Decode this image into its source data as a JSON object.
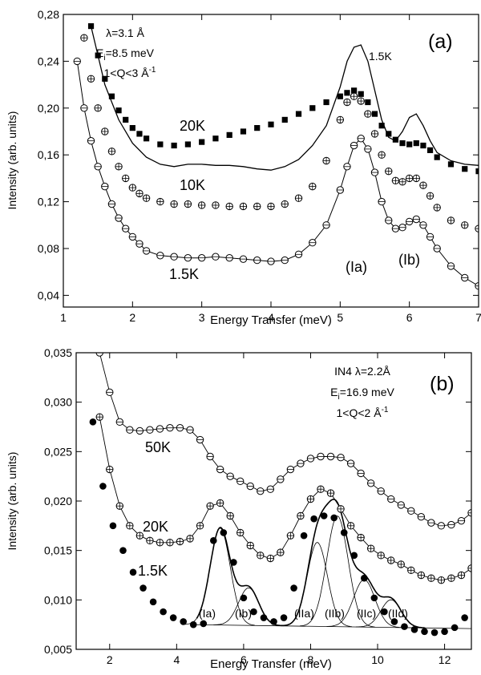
{
  "chart_data": [
    {
      "type": "scatter",
      "panel_label": "(a)",
      "xlabel": "Energy Transfer (meV)",
      "ylabel": "Intensity (arb. units)",
      "xlim": [
        1,
        7
      ],
      "ylim": [
        0.03,
        0.28
      ],
      "x_ticks": [
        1,
        2,
        3,
        4,
        5,
        6,
        7
      ],
      "x_tick_labels": [
        "1",
        "2",
        "3",
        "4",
        "5",
        "6",
        "7"
      ],
      "y_ticks": [
        0.04,
        0.08,
        0.12,
        0.16,
        0.2,
        0.24,
        0.28
      ],
      "y_tick_labels": [
        "0,04",
        "0,08",
        "0,12",
        "0,16",
        "0,20",
        "0,24",
        "0,28"
      ],
      "info_lines": [
        {
          "main": "λ=3.1 Å",
          "sub": "",
          "tail": "",
          "sup": ""
        },
        {
          "main": "E",
          "sub": "i",
          "tail": "=8.5 meV",
          "sup": ""
        },
        {
          "main": "1<Q<3 Å",
          "sub": "",
          "tail": "",
          "sup": "-1"
        }
      ],
      "labels": [
        "20K",
        "10K",
        "1.5K",
        "1.5K",
        "(Ia)",
        "(Ib)"
      ],
      "series": [
        {
          "name": "20K",
          "marker": "filled-square",
          "x": [
            1.4,
            1.5,
            1.6,
            1.7,
            1.8,
            1.9,
            2.0,
            2.1,
            2.2,
            2.4,
            2.6,
            2.8,
            3.0,
            3.2,
            3.4,
            3.6,
            3.8,
            4.0,
            4.2,
            4.4,
            4.6,
            4.8,
            5.0,
            5.1,
            5.2,
            5.3,
            5.4,
            5.5,
            5.6,
            5.7,
            5.8,
            5.9,
            6.0,
            6.1,
            6.2,
            6.3,
            6.4,
            6.6,
            6.8,
            7.0
          ],
          "y": [
            0.27,
            0.245,
            0.225,
            0.21,
            0.198,
            0.19,
            0.183,
            0.178,
            0.174,
            0.169,
            0.168,
            0.169,
            0.171,
            0.174,
            0.177,
            0.18,
            0.183,
            0.186,
            0.19,
            0.195,
            0.2,
            0.205,
            0.21,
            0.213,
            0.215,
            0.212,
            0.205,
            0.195,
            0.185,
            0.178,
            0.173,
            0.17,
            0.169,
            0.17,
            0.168,
            0.164,
            0.158,
            0.152,
            0.148,
            0.146
          ]
        },
        {
          "name": "10K",
          "marker": "crossed-circle",
          "x": [
            1.3,
            1.4,
            1.5,
            1.6,
            1.7,
            1.8,
            1.9,
            2.0,
            2.1,
            2.2,
            2.4,
            2.6,
            2.8,
            3.0,
            3.2,
            3.4,
            3.6,
            3.8,
            4.0,
            4.2,
            4.4,
            4.6,
            4.8,
            5.0,
            5.1,
            5.2,
            5.3,
            5.4,
            5.5,
            5.6,
            5.7,
            5.8,
            5.9,
            6.0,
            6.1,
            6.2,
            6.3,
            6.4,
            6.6,
            6.8,
            7.0
          ],
          "y": [
            0.26,
            0.225,
            0.2,
            0.18,
            0.163,
            0.15,
            0.14,
            0.132,
            0.127,
            0.123,
            0.12,
            0.118,
            0.118,
            0.117,
            0.117,
            0.116,
            0.116,
            0.116,
            0.116,
            0.118,
            0.123,
            0.133,
            0.155,
            0.19,
            0.205,
            0.21,
            0.206,
            0.195,
            0.178,
            0.16,
            0.146,
            0.138,
            0.137,
            0.14,
            0.14,
            0.134,
            0.125,
            0.115,
            0.104,
            0.1,
            0.097
          ]
        },
        {
          "name": "1.5K",
          "marker": "open-circle",
          "x": [
            1.2,
            1.3,
            1.4,
            1.5,
            1.6,
            1.7,
            1.8,
            1.9,
            2.0,
            2.1,
            2.2,
            2.4,
            2.6,
            2.8,
            3.0,
            3.2,
            3.4,
            3.6,
            3.8,
            4.0,
            4.2,
            4.4,
            4.6,
            4.8,
            5.0,
            5.1,
            5.2,
            5.3,
            5.4,
            5.5,
            5.6,
            5.7,
            5.8,
            5.9,
            6.0,
            6.1,
            6.2,
            6.3,
            6.4,
            6.6,
            6.8,
            7.0
          ],
          "y": [
            0.24,
            0.2,
            0.172,
            0.15,
            0.133,
            0.118,
            0.106,
            0.097,
            0.09,
            0.084,
            0.078,
            0.074,
            0.073,
            0.072,
            0.072,
            0.073,
            0.072,
            0.071,
            0.07,
            0.069,
            0.07,
            0.075,
            0.085,
            0.1,
            0.13,
            0.15,
            0.168,
            0.174,
            0.165,
            0.145,
            0.12,
            0.104,
            0.097,
            0.098,
            0.103,
            0.105,
            0.1,
            0.09,
            0.08,
            0.065,
            0.055,
            0.048
          ]
        },
        {
          "name": "1.5K",
          "marker": "line",
          "x": [
            1.4,
            1.5,
            1.6,
            1.8,
            2.0,
            2.2,
            2.4,
            2.6,
            2.8,
            3.0,
            3.2,
            3.4,
            3.6,
            3.8,
            4.0,
            4.2,
            4.4,
            4.6,
            4.8,
            5.0,
            5.1,
            5.2,
            5.3,
            5.4,
            5.5,
            5.6,
            5.7,
            5.8,
            5.9,
            6.0,
            6.1,
            6.2,
            6.3,
            6.4,
            6.6,
            6.8,
            7.0
          ],
          "y": [
            0.27,
            0.245,
            0.22,
            0.19,
            0.17,
            0.158,
            0.152,
            0.15,
            0.152,
            0.152,
            0.151,
            0.151,
            0.15,
            0.148,
            0.147,
            0.15,
            0.156,
            0.168,
            0.185,
            0.218,
            0.24,
            0.252,
            0.254,
            0.24,
            0.215,
            0.19,
            0.175,
            0.172,
            0.18,
            0.192,
            0.195,
            0.185,
            0.172,
            0.162,
            0.155,
            0.152,
            0.151
          ]
        }
      ]
    },
    {
      "type": "scatter",
      "panel_label": "(b)",
      "xlabel": "Energy Transfer (meV)",
      "ylabel": "Intensity (arb. units)",
      "xlim": [
        1,
        12.8
      ],
      "ylim": [
        0.005,
        0.035
      ],
      "x_ticks": [
        2,
        4,
        6,
        8,
        10,
        12
      ],
      "x_tick_labels": [
        "2",
        "4",
        "6",
        "8",
        "10",
        "12"
      ],
      "y_ticks": [
        0.005,
        0.01,
        0.015,
        0.02,
        0.025,
        0.03,
        0.035
      ],
      "y_tick_labels": [
        "0,005",
        "0,010",
        "0,015",
        "0,020",
        "0,025",
        "0,030",
        "0,035"
      ],
      "info_lines": [
        {
          "main": "IN4 λ=2.2Å",
          "sub": "",
          "tail": "",
          "sup": ""
        },
        {
          "main": "E",
          "sub": "i",
          "tail": "=16.9 meV",
          "sup": ""
        },
        {
          "main": "1<Q<2 Å",
          "sub": "",
          "tail": "",
          "sup": "-1"
        }
      ],
      "labels": [
        "50K",
        "20K",
        "1.5K",
        "(Ia)",
        "(Ib)",
        "(IIa)",
        "(IIb)",
        "(IIc)",
        "(IId)"
      ],
      "series": [
        {
          "name": "50K",
          "marker": "open-circle",
          "x": [
            1.7,
            2.0,
            2.3,
            2.6,
            2.9,
            3.2,
            3.5,
            3.8,
            4.1,
            4.4,
            4.7,
            5.0,
            5.3,
            5.6,
            5.9,
            6.2,
            6.5,
            6.8,
            7.1,
            7.4,
            7.7,
            8.0,
            8.3,
            8.6,
            8.9,
            9.2,
            9.5,
            9.8,
            10.1,
            10.4,
            10.7,
            11.0,
            11.3,
            11.6,
            11.9,
            12.2,
            12.5,
            12.8
          ],
          "y": [
            0.035,
            0.031,
            0.028,
            0.0272,
            0.0271,
            0.0272,
            0.0273,
            0.0274,
            0.0274,
            0.0272,
            0.0262,
            0.0245,
            0.0232,
            0.0225,
            0.022,
            0.0215,
            0.021,
            0.0212,
            0.0222,
            0.0232,
            0.0238,
            0.0243,
            0.0245,
            0.0245,
            0.0244,
            0.0238,
            0.0228,
            0.0218,
            0.021,
            0.0202,
            0.0196,
            0.019,
            0.0184,
            0.0178,
            0.0175,
            0.0176,
            0.018,
            0.0188
          ]
        },
        {
          "name": "20K",
          "marker": "crossed-circle",
          "x": [
            1.7,
            2.0,
            2.3,
            2.6,
            2.9,
            3.2,
            3.5,
            3.8,
            4.1,
            4.4,
            4.7,
            5.0,
            5.3,
            5.6,
            5.9,
            6.2,
            6.5,
            6.8,
            7.1,
            7.4,
            7.7,
            8.0,
            8.3,
            8.6,
            8.9,
            9.2,
            9.5,
            9.8,
            10.1,
            10.4,
            10.7,
            11.0,
            11.3,
            11.6,
            11.9,
            12.2,
            12.5,
            12.8
          ],
          "y": [
            0.0285,
            0.0232,
            0.0195,
            0.0175,
            0.0165,
            0.016,
            0.0158,
            0.0158,
            0.0159,
            0.0162,
            0.0175,
            0.0195,
            0.0198,
            0.0185,
            0.0168,
            0.0155,
            0.0145,
            0.0142,
            0.0148,
            0.0165,
            0.0185,
            0.0202,
            0.0212,
            0.0208,
            0.0192,
            0.0175,
            0.0163,
            0.0152,
            0.0145,
            0.014,
            0.0136,
            0.013,
            0.0125,
            0.0122,
            0.012,
            0.0122,
            0.0125,
            0.0132
          ]
        },
        {
          "name": "1.5K",
          "marker": "filled-circle",
          "x": [
            1.5,
            1.8,
            2.1,
            2.4,
            2.7,
            3.0,
            3.3,
            3.6,
            3.9,
            4.2,
            4.5,
            4.8,
            5.1,
            5.4,
            5.7,
            6.0,
            6.3,
            6.6,
            6.9,
            7.2,
            7.5,
            7.8,
            8.1,
            8.4,
            8.7,
            9.0,
            9.3,
            9.6,
            9.9,
            10.2,
            10.5,
            10.8,
            11.1,
            11.4,
            11.7,
            12.0,
            12.3,
            12.6
          ],
          "y": [
            0.028,
            0.0215,
            0.0175,
            0.015,
            0.0128,
            0.0112,
            0.0098,
            0.0088,
            0.0082,
            0.0078,
            0.0075,
            0.0076,
            0.016,
            0.0168,
            0.0138,
            0.0102,
            0.0088,
            0.0082,
            0.0078,
            0.0082,
            0.0112,
            0.0165,
            0.0182,
            0.0185,
            0.0183,
            0.0168,
            0.0145,
            0.0122,
            0.0102,
            0.0088,
            0.0078,
            0.0073,
            0.007,
            0.0068,
            0.0067,
            0.0068,
            0.0072,
            0.0082
          ]
        }
      ],
      "fit_components": [
        {
          "name": "(Ia)",
          "center": 5.3,
          "amplitude": 0.0098,
          "sigma": 0.3
        },
        {
          "name": "(Ib)",
          "center": 6.15,
          "amplitude": 0.0038,
          "sigma": 0.3
        },
        {
          "name": "(IIa)",
          "center": 8.2,
          "amplitude": 0.0085,
          "sigma": 0.3
        },
        {
          "name": "(IIb)",
          "center": 8.8,
          "amplitude": 0.0112,
          "sigma": 0.32
        },
        {
          "name": "(IIc)",
          "center": 9.6,
          "amplitude": 0.0048,
          "sigma": 0.32
        },
        {
          "name": "(IId)",
          "center": 10.4,
          "amplitude": 0.0028,
          "sigma": 0.3
        }
      ],
      "fit_baseline": {
        "x": [
          4.5,
          12.8
        ],
        "y": [
          0.0075,
          0.0071
        ]
      }
    }
  ]
}
